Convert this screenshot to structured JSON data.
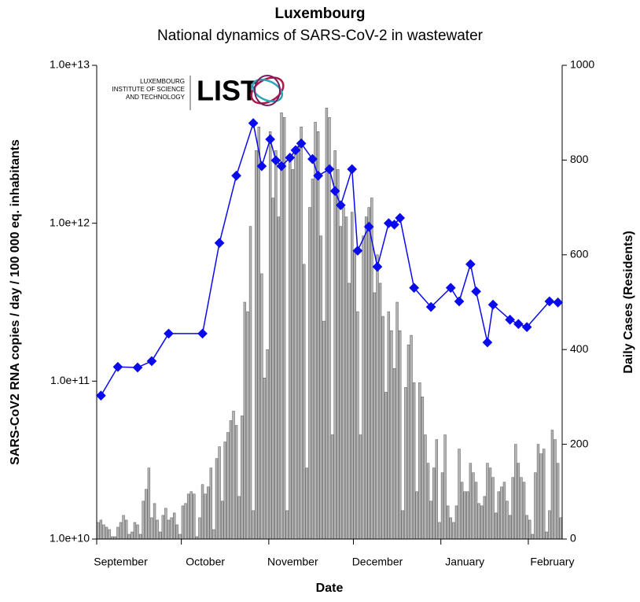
{
  "chart_data": {
    "type": "bar",
    "title": "Luxembourg",
    "subtitle": "National dynamics of SARS-CoV-2 in wastewater",
    "x_label": "Date",
    "y_label": "SARS-CoV2 RNA copies / day  / 100 000 eq. inhabitants",
    "y2_label": "Daily Cases (Residents)",
    "logo": {
      "lines": [
        "LUXEMBOURG",
        "INSTITUTE OF SCIENCE",
        "AND TECHNOLOGY"
      ],
      "wordmark": "LIST"
    },
    "ylog": true,
    "ylim": [
      10000000000.0,
      10000000000000.0
    ],
    "yticks": [
      {
        "value": 10000000000.0,
        "label": "1.0e+10"
      },
      {
        "value": 100000000000.0,
        "label": "1.0e+11"
      },
      {
        "value": 1000000000000.0,
        "label": "1.0e+12"
      },
      {
        "value": 10000000000000.0,
        "label": "1.0e+13"
      }
    ],
    "y2lim": [
      0,
      1000
    ],
    "y2ticks": [
      0,
      200,
      400,
      600,
      800,
      1000
    ],
    "grid": false,
    "categories": [
      null,
      null,
      null,
      null,
      null,
      null,
      null,
      null,
      "September",
      null,
      null,
      null,
      null,
      null,
      null,
      null,
      null,
      null,
      null,
      null,
      null,
      null,
      null,
      null,
      null,
      null,
      null,
      null,
      null,
      null,
      null,
      null,
      null,
      null,
      null,
      null,
      null,
      null,
      "October",
      null,
      null,
      null,
      null,
      null,
      null,
      null,
      null,
      null,
      null,
      null,
      null,
      null,
      null,
      null,
      null,
      null,
      null,
      null,
      null,
      null,
      null,
      null,
      null,
      null,
      null,
      null,
      null,
      null,
      null,
      "November",
      null,
      null,
      null,
      null,
      null,
      null,
      null,
      null,
      null,
      null,
      null,
      null,
      null,
      null,
      null,
      null,
      null,
      null,
      null,
      null,
      null,
      null,
      null,
      null,
      null,
      null,
      null,
      null,
      null,
      "December",
      null,
      null,
      null,
      null,
      null,
      null,
      null,
      null,
      null,
      null,
      null,
      null,
      null,
      null,
      null,
      null,
      null,
      null,
      null,
      null,
      null,
      null,
      null,
      null,
      null,
      null,
      null,
      null,
      null,
      null,
      "January",
      null,
      null,
      null,
      null,
      null,
      null,
      null,
      null,
      null,
      null,
      null,
      null,
      null,
      null,
      null,
      null,
      null,
      null,
      null,
      null,
      null,
      null,
      null,
      null,
      null,
      null,
      null,
      null,
      null,
      null,
      "February",
      null,
      null,
      null
    ],
    "series": [
      {
        "type": "bar",
        "axis": "y2",
        "color": "#b4b4b4",
        "values": [
          35,
          40,
          30,
          25,
          20,
          5,
          5,
          25,
          35,
          50,
          40,
          10,
          15,
          35,
          30,
          10,
          80,
          105,
          150,
          45,
          75,
          40,
          15,
          50,
          65,
          40,
          45,
          55,
          30,
          10,
          70,
          75,
          95,
          100,
          95,
          5,
          45,
          115,
          95,
          110,
          150,
          20,
          170,
          195,
          80,
          205,
          225,
          250,
          270,
          240,
          90,
          260,
          500,
          480,
          660,
          60,
          820,
          870,
          560,
          340,
          400,
          860,
          720,
          820,
          680,
          900,
          890,
          60,
          800,
          780,
          820,
          830,
          870,
          580,
          150,
          700,
          760,
          880,
          860,
          640,
          460,
          910,
          890,
          220,
          820,
          780,
          660,
          700,
          680,
          540,
          690,
          610,
          480,
          220,
          640,
          680,
          700,
          720,
          520,
          600,
          540,
          470,
          310,
          480,
          440,
          360,
          500,
          440,
          60,
          320,
          410,
          430,
          330,
          100,
          330,
          300,
          220,
          160,
          80,
          150,
          210,
          35,
          140,
          220,
          70,
          45,
          35,
          70,
          190,
          120,
          100,
          100,
          160,
          140,
          120,
          75,
          70,
          90,
          160,
          150,
          130,
          55,
          100,
          110,
          120,
          80,
          50,
          130,
          200,
          160,
          130,
          120,
          50,
          40,
          10,
          140,
          200,
          180,
          190,
          15,
          60,
          230,
          210,
          160,
          45
        ]
      },
      {
        "type": "line",
        "color": "#0a0aee",
        "values": [
          null,
          81000000000.0,
          null,
          null,
          null,
          null,
          null,
          123000000000.0,
          null,
          null,
          null,
          null,
          null,
          null,
          122000000000.0,
          null,
          null,
          null,
          null,
          134000000000.0,
          null,
          null,
          null,
          null,
          null,
          200000000000.0,
          null,
          null,
          null,
          null,
          null,
          null,
          null,
          null,
          null,
          null,
          null,
          200000000000.0,
          null,
          null,
          null,
          null,
          null,
          750000000000.0,
          null,
          null,
          null,
          null,
          null,
          2000000000000.0,
          null,
          null,
          null,
          null,
          null,
          4300000000000.0,
          null,
          null,
          2300000000000.0,
          null,
          null,
          3400000000000.0,
          null,
          2500000000000.0,
          null,
          2300000000000.0,
          null,
          null,
          2600000000000.0,
          null,
          2900000000000.0,
          null,
          3200000000000.0,
          null,
          null,
          null,
          2550000000000.0,
          null,
          2000000000000.0,
          null,
          null,
          null,
          2200000000000.0,
          null,
          1600000000000.0,
          null,
          1300000000000.0,
          null,
          null,
          null,
          2200000000000.0,
          null,
          670000000000.0,
          null,
          null,
          null,
          950000000000.0,
          null,
          null,
          530000000000.0,
          null,
          null,
          null,
          1000000000000.0,
          null,
          980000000000.0,
          null,
          1080000000000.0,
          null,
          null,
          null,
          null,
          390000000000.0,
          null,
          null,
          null,
          null,
          null,
          295000000000.0,
          null,
          null,
          null,
          null,
          null,
          null,
          390000000000.0,
          null,
          null,
          320000000000.0,
          null,
          null,
          null,
          550000000000.0,
          null,
          370000000000.0,
          null,
          null,
          null,
          176000000000.0,
          null,
          305000000000.0,
          null,
          null,
          null,
          null,
          null,
          245000000000.0,
          null,
          null,
          230000000000.0,
          null,
          null,
          220000000000.0,
          null,
          null,
          null,
          null,
          null,
          null,
          null,
          320000000000.0,
          null,
          null,
          315000000000.0,
          null
        ]
      }
    ]
  }
}
